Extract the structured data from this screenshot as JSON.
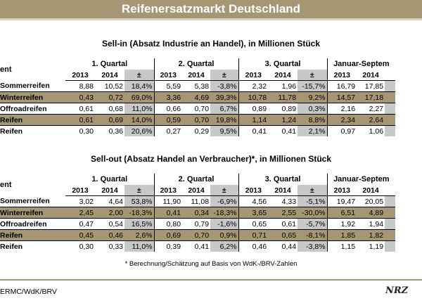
{
  "banner": "Reifenersatzmarkt Deutschland",
  "sell_in": {
    "title": "Sell-in (Absatz Industrie an Handel), in Millionen Stück",
    "segment_label": "ent",
    "quarters": [
      "1. Quartal",
      "2. Quartal",
      "3. Quartal",
      "Januar-Septem"
    ],
    "year_cols": [
      "2013",
      "2014",
      "±"
    ],
    "rows": [
      {
        "label": "Sommerreifen",
        "q1": [
          "8,88",
          "10,52",
          "18,4%"
        ],
        "q2": [
          "5,59",
          "5,38",
          "-3,8%"
        ],
        "q3": [
          "2,32",
          "1,96",
          "-15,7%"
        ],
        "ytd": [
          "16,79",
          "17,85"
        ],
        "gold": false
      },
      {
        "label": "Winterreifen",
        "q1": [
          "0,43",
          "0,72",
          "69,0%"
        ],
        "q2": [
          "3,36",
          "4,69",
          "39,3%"
        ],
        "q3": [
          "10,78",
          "11,78",
          "9,2%"
        ],
        "ytd": [
          "14,57",
          "17,18"
        ],
        "gold": true
      },
      {
        "label": "Offroadreifen",
        "q1": [
          "0,61",
          "0,68",
          "11,0%"
        ],
        "q2": [
          "0,66",
          "0,70",
          "6,7%"
        ],
        "q3": [
          "0,89",
          "0,89",
          "0,3%"
        ],
        "ytd": [
          "2,16",
          "2,27"
        ],
        "gold": false
      },
      {
        "label": "Reifen",
        "q1": [
          "0,61",
          "0,69",
          "14,0%"
        ],
        "q2": [
          "0,59",
          "0,70",
          "19,8%"
        ],
        "q3": [
          "1,14",
          "1,24",
          "8,8%"
        ],
        "ytd": [
          "2,34",
          "2,64"
        ],
        "gold": true
      },
      {
        "label": "Reifen",
        "q1": [
          "0,30",
          "0,36",
          "20,6%"
        ],
        "q2": [
          "0,27",
          "0,29",
          "9,5%"
        ],
        "q3": [
          "0,41",
          "0,41",
          "2,1%"
        ],
        "ytd": [
          "0,97",
          "1,06"
        ],
        "gold": false
      }
    ]
  },
  "sell_out": {
    "title": "Sell-out (Absatz Handel an Verbraucher)*, in Millionen Stück",
    "segment_label": "ent",
    "quarters": [
      "1. Quartal",
      "2. Quartal",
      "3. Quartal",
      "Januar-Septem"
    ],
    "year_cols": [
      "2013",
      "2014",
      "±"
    ],
    "rows": [
      {
        "label": "Sommerreifen",
        "q1": [
          "3,02",
          "4,64",
          "53,8%"
        ],
        "q2": [
          "11,90",
          "11,08",
          "-6,9%"
        ],
        "q3": [
          "4,56",
          "4,33",
          "-5,1%"
        ],
        "ytd": [
          "19,47",
          "20,05"
        ],
        "gold": false
      },
      {
        "label": "Winterreifen",
        "q1": [
          "2,45",
          "2,00",
          "-18,3%"
        ],
        "q2": [
          "0,41",
          "0,34",
          "-18,3%"
        ],
        "q3": [
          "3,65",
          "2,55",
          "-30,0%"
        ],
        "ytd": [
          "6,51",
          "4,89"
        ],
        "gold": true
      },
      {
        "label": "Offroadreifen",
        "q1": [
          "0,47",
          "0,54",
          "16,5%"
        ],
        "q2": [
          "0,80",
          "0,79",
          "-1,6%"
        ],
        "q3": [
          "0,65",
          "0,61",
          "-5,7%"
        ],
        "ytd": [
          "1,92",
          "1,94"
        ],
        "gold": false
      },
      {
        "label": "Reifen",
        "q1": [
          "0,45",
          "0,46",
          "2,6%"
        ],
        "q2": [
          "0,69",
          "0,70",
          "0,9%"
        ],
        "q3": [
          "0,71",
          "0,65",
          "-8,1%"
        ],
        "ytd": [
          "1,85",
          "1,82"
        ],
        "gold": true
      },
      {
        "label": "Reifen",
        "q1": [
          "0,30",
          "0,33",
          "11,0%"
        ],
        "q2": [
          "0,39",
          "0,41",
          "6,2%"
        ],
        "q3": [
          "0,46",
          "0,44",
          "-3,8%"
        ],
        "ytd": [
          "1,15",
          "1,19"
        ],
        "gold": false
      }
    ]
  },
  "footnote": "* Berechnung/Schätzung auf Basis von WdK-/BRV-Zahlen",
  "source": "ERMC/WdK/BRV",
  "logo": "NRZ"
}
